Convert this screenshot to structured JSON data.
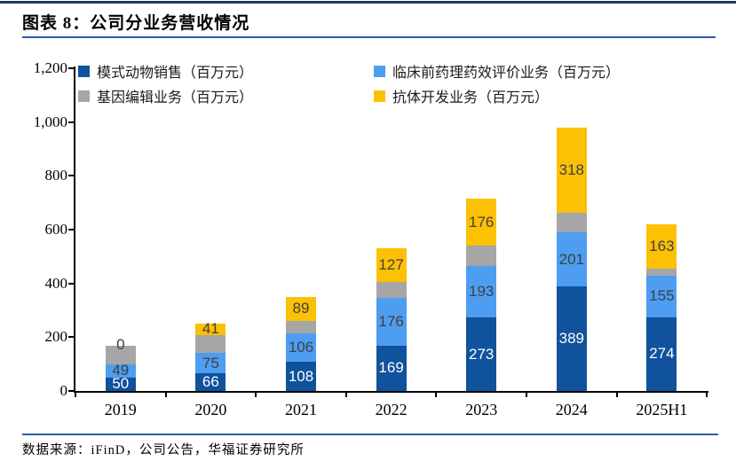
{
  "header": {
    "title": "图表 8：公司分业务营收情况"
  },
  "footer": {
    "source": "数据来源：iFinD，公司公告，华福证券研究所"
  },
  "colors": {
    "top_rule": "#1F3864",
    "divider_rule": "#2F5BA7",
    "axis": "#000000",
    "label_on_dark": "#FFFFFF",
    "label_default": "#404040",
    "legend_text": "#1A1A1A"
  },
  "chart_data": {
    "type": "bar",
    "stacked": true,
    "title": "公司分业务营收情况",
    "unit": "百万元",
    "categories": [
      "2019",
      "2020",
      "2021",
      "2022",
      "2023",
      "2024",
      "2025H1"
    ],
    "series": [
      {
        "name": "模式动物销售（百万元）",
        "color": "#10529C",
        "labels_visible": true,
        "label_color": "#FFFFFF",
        "values": [
          50,
          66,
          108,
          169,
          273,
          389,
          274
        ]
      },
      {
        "name": "临床前药理药效评价业务（百万元）",
        "color": "#4D9DF0",
        "labels_visible": true,
        "label_color": "#404040",
        "values": [
          49,
          75,
          106,
          176,
          193,
          201,
          155
        ]
      },
      {
        "name": "基因编辑业务（百万元）",
        "color": "#A6A6A6",
        "labels_visible": false,
        "values": [
          69,
          68,
          47,
          60,
          74,
          72,
          27
        ]
      },
      {
        "name": "抗体开发业务（百万元）",
        "color": "#FCC004",
        "labels_visible": true,
        "label_color": "#404040",
        "values": [
          0,
          41,
          89,
          127,
          176,
          318,
          163
        ]
      }
    ],
    "ylim": [
      0,
      1200
    ],
    "ytick_step": 200,
    "ytick_labels": [
      "0",
      "200",
      "400",
      "600",
      "800",
      "1,000",
      "1,200"
    ],
    "gridlines": false,
    "legend_position": "top",
    "legend_rows": [
      [
        0,
        1
      ],
      [
        2,
        3
      ]
    ]
  }
}
